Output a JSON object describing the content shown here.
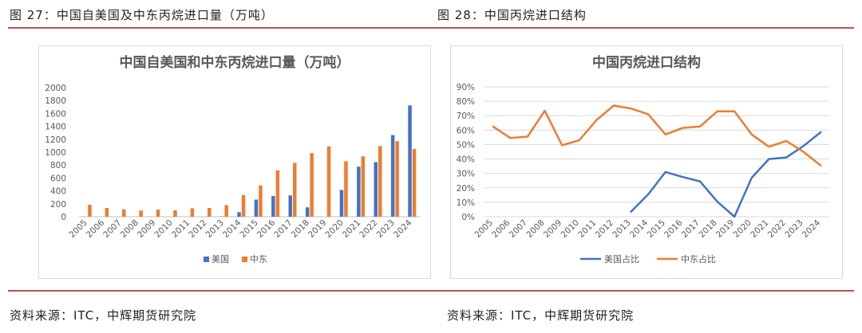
{
  "header": {
    "left_title": "图 27：中国自美国及中东丙烷进口量（万吨）",
    "right_title": "图 28：中国丙烷进口结构"
  },
  "footer": {
    "left_source": "资料来源：ITC，中辉期货研究院",
    "right_source": "资料来源：ITC，中辉期货研究院"
  },
  "colors": {
    "rule": "#c0504d",
    "us": "#4472c4",
    "me": "#ed7d31",
    "grid": "#d9d9d9"
  },
  "chart_data": [
    {
      "type": "bar",
      "title": "中国自美国和中东丙烷进口量（万吨）",
      "categories": [
        "2005",
        "2006",
        "2007",
        "2008",
        "2009",
        "2010",
        "2011",
        "2012",
        "2013",
        "2014",
        "2015",
        "2016",
        "2017",
        "2018",
        "2019",
        "2020",
        "2021",
        "2022",
        "2023",
        "2024"
      ],
      "series": [
        {
          "name": "美国",
          "color": "#4472c4",
          "values": [
            0,
            0,
            0,
            0,
            0,
            0,
            0,
            0,
            5,
            70,
            265,
            320,
            330,
            145,
            0,
            415,
            775,
            845,
            1265,
            1725
          ]
        },
        {
          "name": "中东",
          "color": "#ed7d31",
          "values": [
            185,
            135,
            115,
            95,
            110,
            100,
            130,
            135,
            180,
            335,
            485,
            720,
            835,
            985,
            1090,
            860,
            935,
            1095,
            1170,
            1050
          ]
        }
      ],
      "yticks": [
        "0",
        "200",
        "400",
        "600",
        "800",
        "1000",
        "1200",
        "1400",
        "1600",
        "1800",
        "2000"
      ],
      "ylim": [
        0,
        2000
      ],
      "grid": false,
      "legend": "bottom"
    },
    {
      "type": "line",
      "title": "中国丙烷进口结构",
      "categories": [
        "2005",
        "2006",
        "2007",
        "2008",
        "2009",
        "2010",
        "2011",
        "2012",
        "2013",
        "2014",
        "2015",
        "2016",
        "2017",
        "2018",
        "2019",
        "2020",
        "2021",
        "2022",
        "2023",
        "2024"
      ],
      "series": [
        {
          "name": "美国占比",
          "color": "#4472c4",
          "values": [
            null,
            null,
            null,
            null,
            null,
            null,
            null,
            null,
            3.5,
            15.5,
            31,
            27.5,
            24.5,
            10.5,
            0,
            27,
            40,
            41,
            49,
            58.5
          ]
        },
        {
          "name": "中东占比",
          "color": "#ed7d31",
          "values": [
            62.5,
            54.5,
            55.5,
            73.5,
            49.5,
            53,
            67,
            77,
            75,
            71,
            57,
            61.5,
            62.5,
            73,
            73,
            57,
            48.5,
            52.5,
            45,
            35.5
          ]
        }
      ],
      "yticks": [
        "0%",
        "10%",
        "20%",
        "30%",
        "40%",
        "50%",
        "60%",
        "70%",
        "80%",
        "90%"
      ],
      "ylim": [
        0,
        90
      ],
      "grid": true,
      "legend": "bottom"
    }
  ]
}
